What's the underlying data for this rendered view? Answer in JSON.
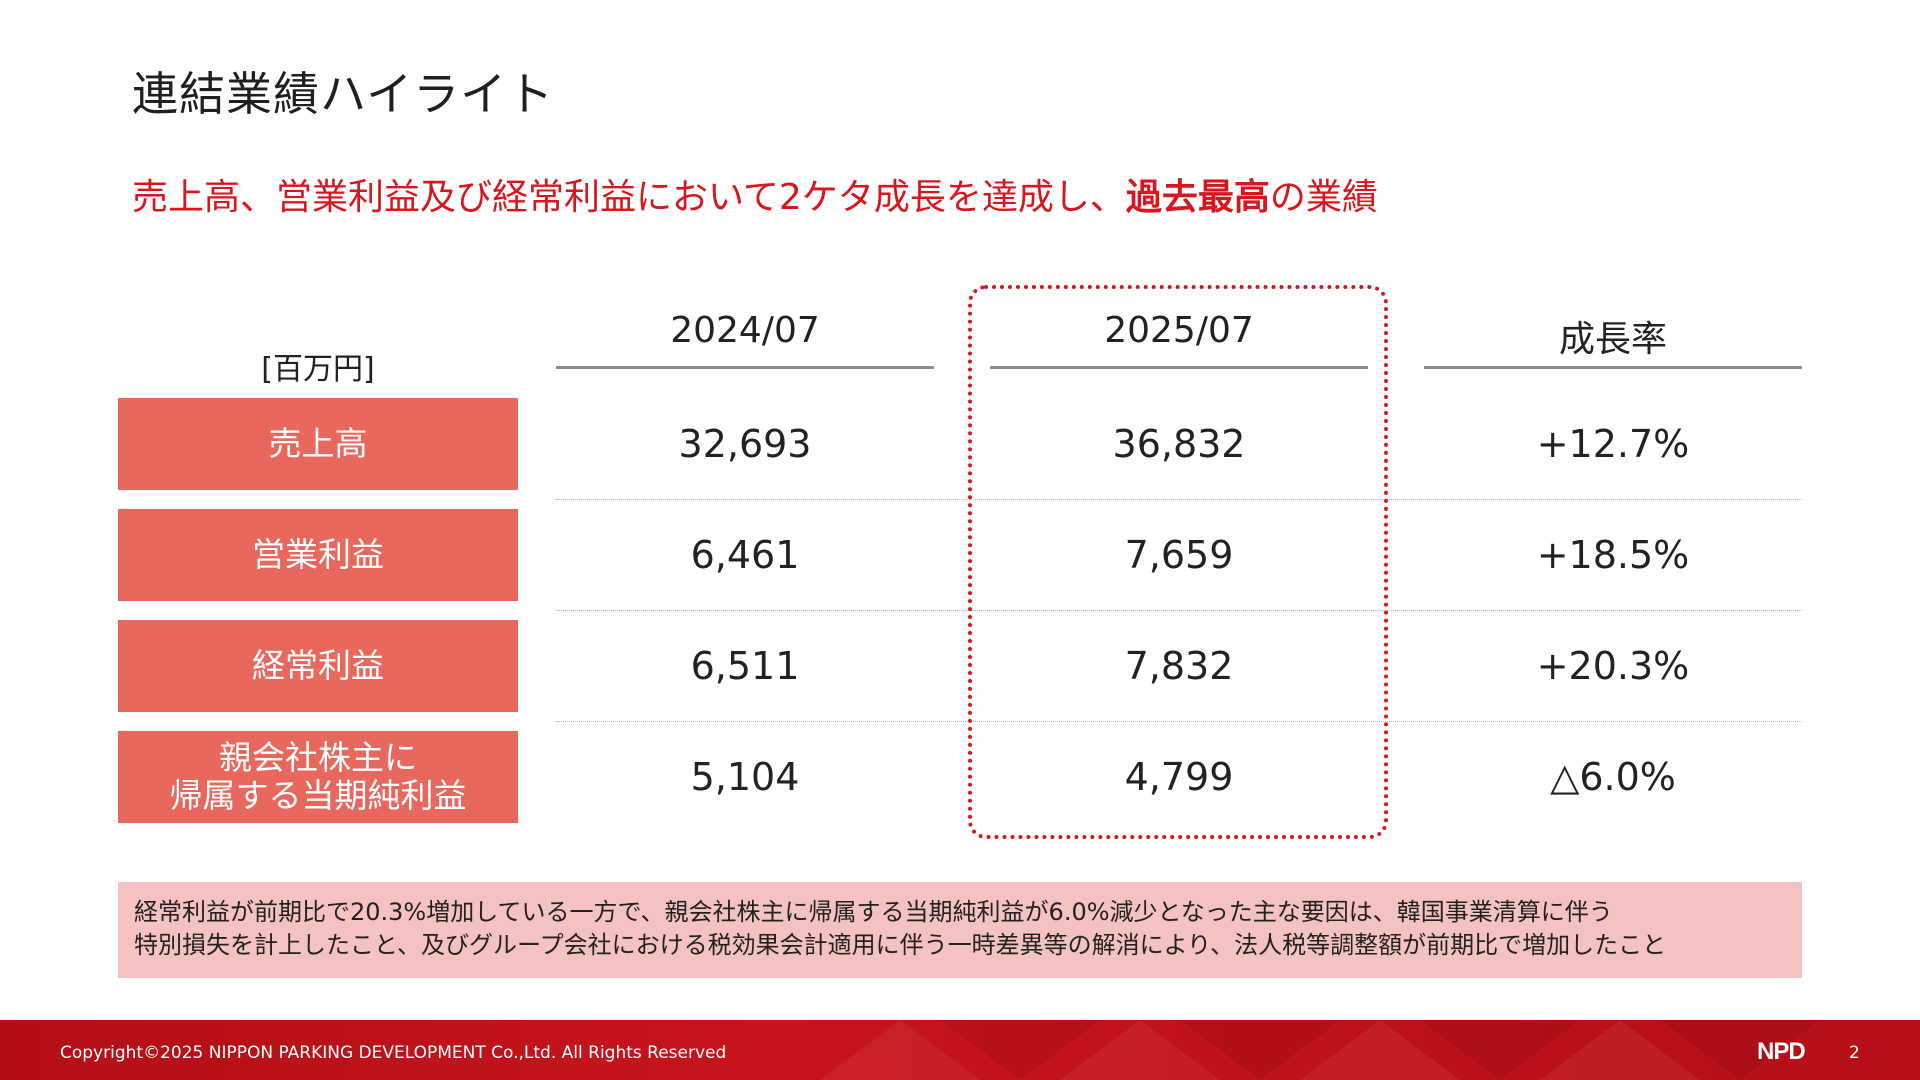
{
  "title": "連結業績ハイライト",
  "headline": {
    "part1": "売上高、営業利益及び経常利益において2ケタ成長を達成し、",
    "emphasis": "過去最高",
    "part2": "の業績"
  },
  "table": {
    "unit": "[百万円]",
    "columns": [
      "2024/07",
      "2025/07",
      "成長率"
    ],
    "rows": [
      {
        "label": "売上高",
        "values": [
          "32,693",
          "36,832",
          "+12.7%"
        ]
      },
      {
        "label": "営業利益",
        "values": [
          "6,461",
          "7,659",
          "+18.5%"
        ]
      },
      {
        "label": "経常利益",
        "values": [
          "6,511",
          "7,832",
          "+20.3%"
        ]
      },
      {
        "label_line1": "親会社株主に",
        "label_line2": "帰属する当期純利益",
        "values": [
          "5,104",
          "4,799",
          "△6.0%"
        ]
      }
    ]
  },
  "note": {
    "line1": "経常利益が前期比で20.3%増加している一方で、親会社株主に帰属する当期純利益が6.0%減少となった主な要因は、韓国事業清算に伴う",
    "line2": "特別損失を計上したこと、及びグループ会社における税効果会計適用に伴う一時差異等の解消により、法人税等調整額が前期比で増加したこと"
  },
  "footer": {
    "copyright": "Copyright©2025  NIPPON PARKING DEVELOPMENT Co.,Ltd.  All Rights Reserved",
    "logo": "NPD",
    "page": "2"
  },
  "colors": {
    "accent_red": "#d7161d",
    "label_fill": "#e8685e",
    "note_fill": "#f4c2c0",
    "footer_red": "#c8141c"
  }
}
